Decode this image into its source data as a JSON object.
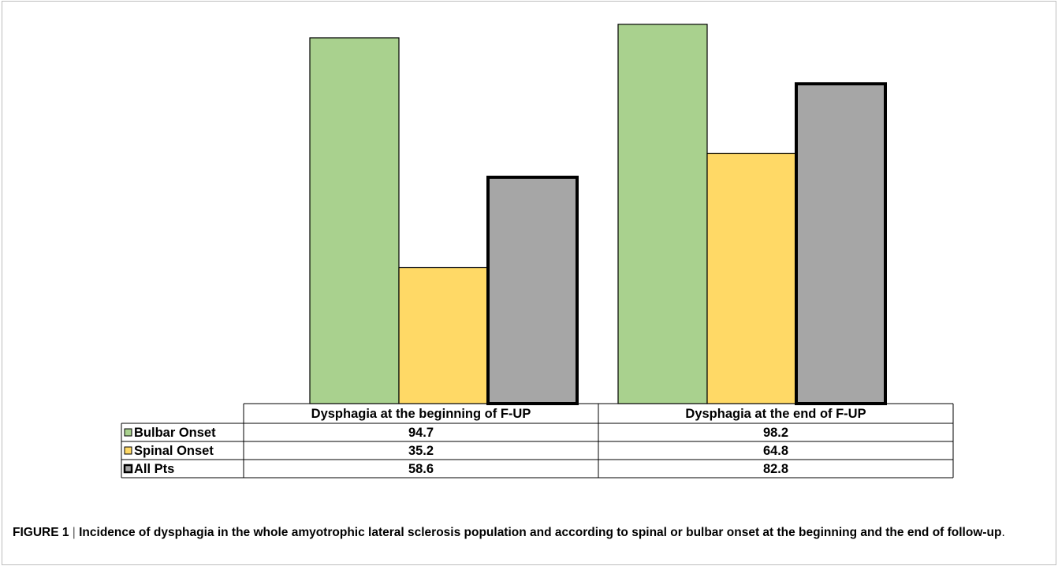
{
  "chart_data": {
    "type": "bar",
    "categories": [
      "Dysphagia at the beginning of F-UP",
      "Dysphagia at the end of F-UP"
    ],
    "series": [
      {
        "name": "Bulbar Onset",
        "values": [
          94.7,
          98.2
        ],
        "color": "#a9d18e"
      },
      {
        "name": "Spinal Onset",
        "values": [
          35.2,
          64.8
        ],
        "color": "#ffd966"
      },
      {
        "name": "All Pts",
        "values": [
          58.6,
          82.8
        ],
        "color": "#a6a6a6"
      }
    ],
    "value_labels": [
      [
        "94.7",
        "98.2"
      ],
      [
        "35.2",
        "64.8"
      ],
      [
        "58.6",
        "82.8"
      ]
    ],
    "ylim": [
      0,
      100
    ],
    "grid": false,
    "legend": "data-table"
  },
  "caption": {
    "label": "FIGURE 1",
    "separator": " | ",
    "text": "Incidence of dysphagia in the whole amyotrophic lateral sclerosis population and according to spinal or bulbar onset at the beginning and the end of follow-up",
    "end": "."
  }
}
